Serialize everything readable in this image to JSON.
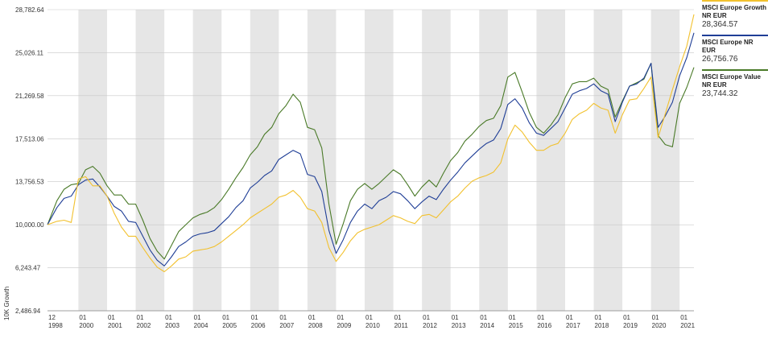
{
  "chart_data": {
    "type": "line",
    "ylabel": "10K Growth",
    "y_ticks": [
      "28,782.64",
      "25,026.11",
      "21,269.58",
      "17,513.06",
      "13,756.53",
      "10,000.00",
      "6,243.47",
      "2,486.94"
    ],
    "ylim": [
      2486.94,
      28782.64
    ],
    "x_ticks": [
      {
        "month": "12",
        "year": "1998"
      },
      {
        "month": "01",
        "year": "2000"
      },
      {
        "month": "01",
        "year": "2001"
      },
      {
        "month": "01",
        "year": "2002"
      },
      {
        "month": "01",
        "year": "2003"
      },
      {
        "month": "01",
        "year": "2004"
      },
      {
        "month": "01",
        "year": "2005"
      },
      {
        "month": "01",
        "year": "2006"
      },
      {
        "month": "01",
        "year": "2007"
      },
      {
        "month": "01",
        "year": "2008"
      },
      {
        "month": "01",
        "year": "2009"
      },
      {
        "month": "01",
        "year": "2010"
      },
      {
        "month": "01",
        "year": "2011"
      },
      {
        "month": "01",
        "year": "2012"
      },
      {
        "month": "01",
        "year": "2013"
      },
      {
        "month": "01",
        "year": "2014"
      },
      {
        "month": "01",
        "year": "2015"
      },
      {
        "month": "01",
        "year": "2016"
      },
      {
        "month": "01",
        "year": "2017"
      },
      {
        "month": "01",
        "year": "2018"
      },
      {
        "month": "01",
        "year": "2019"
      },
      {
        "month": "01",
        "year": "2020"
      },
      {
        "month": "01",
        "year": "2021"
      }
    ],
    "x": [
      1998.92,
      1999.25,
      1999.5,
      1999.75,
      2000.0,
      2000.25,
      2000.5,
      2000.75,
      2001.0,
      2001.25,
      2001.5,
      2001.75,
      2002.0,
      2002.25,
      2002.5,
      2002.75,
      2003.0,
      2003.25,
      2003.5,
      2003.75,
      2004.0,
      2004.25,
      2004.5,
      2004.75,
      2005.0,
      2005.25,
      2005.5,
      2005.75,
      2006.0,
      2006.25,
      2006.5,
      2006.75,
      2007.0,
      2007.25,
      2007.5,
      2007.75,
      2008.0,
      2008.25,
      2008.5,
      2008.75,
      2009.0,
      2009.25,
      2009.5,
      2009.75,
      2010.0,
      2010.25,
      2010.5,
      2010.75,
      2011.0,
      2011.25,
      2011.5,
      2011.75,
      2012.0,
      2012.25,
      2012.5,
      2012.75,
      2013.0,
      2013.25,
      2013.5,
      2013.75,
      2014.0,
      2014.25,
      2014.5,
      2014.75,
      2015.0,
      2015.25,
      2015.5,
      2015.75,
      2016.0,
      2016.25,
      2016.5,
      2016.75,
      2017.0,
      2017.25,
      2017.5,
      2017.75,
      2018.0,
      2018.25,
      2018.5,
      2018.75,
      2019.0,
      2019.25,
      2019.5,
      2019.75,
      2020.0,
      2020.25,
      2020.5,
      2020.75,
      2021.0,
      2021.25,
      2021.5
    ],
    "series": [
      {
        "name": "MSCI Europe Growth NR EUR",
        "last_value": "28,364.57",
        "color": "#f2c12e",
        "values": [
          10000,
          10300,
          10400,
          10200,
          14000,
          14200,
          13400,
          13400,
          12500,
          11000,
          9800,
          9000,
          9000,
          8000,
          7100,
          6300,
          5900,
          6400,
          7000,
          7200,
          7700,
          7800,
          7900,
          8100,
          8500,
          9000,
          9500,
          10000,
          10600,
          11000,
          11400,
          11800,
          12400,
          12600,
          13000,
          12400,
          11400,
          11200,
          10200,
          8000,
          6800,
          7600,
          8600,
          9300,
          9600,
          9800,
          10000,
          10400,
          10800,
          10600,
          10300,
          10100,
          10800,
          10900,
          10600,
          11300,
          12000,
          12500,
          13200,
          13800,
          14100,
          14300,
          14600,
          15400,
          17500,
          18700,
          18100,
          17200,
          16500,
          16500,
          16900,
          17100,
          18000,
          19200,
          19700,
          20000,
          20600,
          20200,
          20000,
          18000,
          19600,
          20900,
          21000,
          21900,
          22900,
          17600,
          19700,
          21800,
          23800,
          25600,
          28364.57
        ]
      },
      {
        "name": "MSCI Europe NR EUR",
        "last_value": "26,756.76",
        "color": "#1f3e96",
        "values": [
          10000,
          11500,
          12300,
          12500,
          13500,
          13900,
          14000,
          13300,
          12500,
          11600,
          11200,
          10300,
          10200,
          9000,
          7800,
          6900,
          6400,
          7200,
          8100,
          8500,
          9000,
          9200,
          9300,
          9500,
          10100,
          10700,
          11500,
          12100,
          13200,
          13700,
          14300,
          14700,
          15700,
          16100,
          16500,
          16200,
          14400,
          14200,
          12900,
          9500,
          7500,
          8700,
          10200,
          11200,
          11800,
          11400,
          12100,
          12400,
          12900,
          12700,
          12100,
          11400,
          12000,
          12500,
          12200,
          13100,
          13900,
          14600,
          15400,
          16000,
          16600,
          17100,
          17400,
          18400,
          20500,
          21000,
          20200,
          18900,
          18000,
          17800,
          18400,
          19000,
          20200,
          21400,
          21700,
          21900,
          22300,
          21700,
          21400,
          19000,
          20700,
          22100,
          22300,
          22800,
          24100,
          18500,
          19500,
          20700,
          23000,
          24600,
          26756.76
        ]
      },
      {
        "name": "MSCI Europe Value NR EUR",
        "last_value": "23,744.32",
        "color": "#4a7a28",
        "values": [
          10000,
          12100,
          13100,
          13500,
          13600,
          14800,
          15100,
          14500,
          13400,
          12600,
          12600,
          11800,
          11800,
          10400,
          8800,
          7700,
          7000,
          8200,
          9400,
          10000,
          10600,
          10900,
          11100,
          11500,
          12200,
          13100,
          14100,
          15000,
          16100,
          16800,
          17900,
          18500,
          19700,
          20400,
          21400,
          20700,
          18500,
          18300,
          16700,
          11800,
          8300,
          10100,
          12100,
          13100,
          13600,
          13100,
          13600,
          14200,
          14800,
          14400,
          13500,
          12500,
          13300,
          13900,
          13300,
          14500,
          15600,
          16300,
          17300,
          17900,
          18600,
          19100,
          19300,
          20400,
          22900,
          23300,
          21600,
          19800,
          18500,
          18000,
          18700,
          19600,
          21100,
          22300,
          22500,
          22500,
          22800,
          22100,
          21800,
          19400,
          20800,
          22100,
          22400,
          22700,
          24100,
          17800,
          17000,
          16800,
          20600,
          22000,
          23744.32
        ]
      }
    ]
  }
}
